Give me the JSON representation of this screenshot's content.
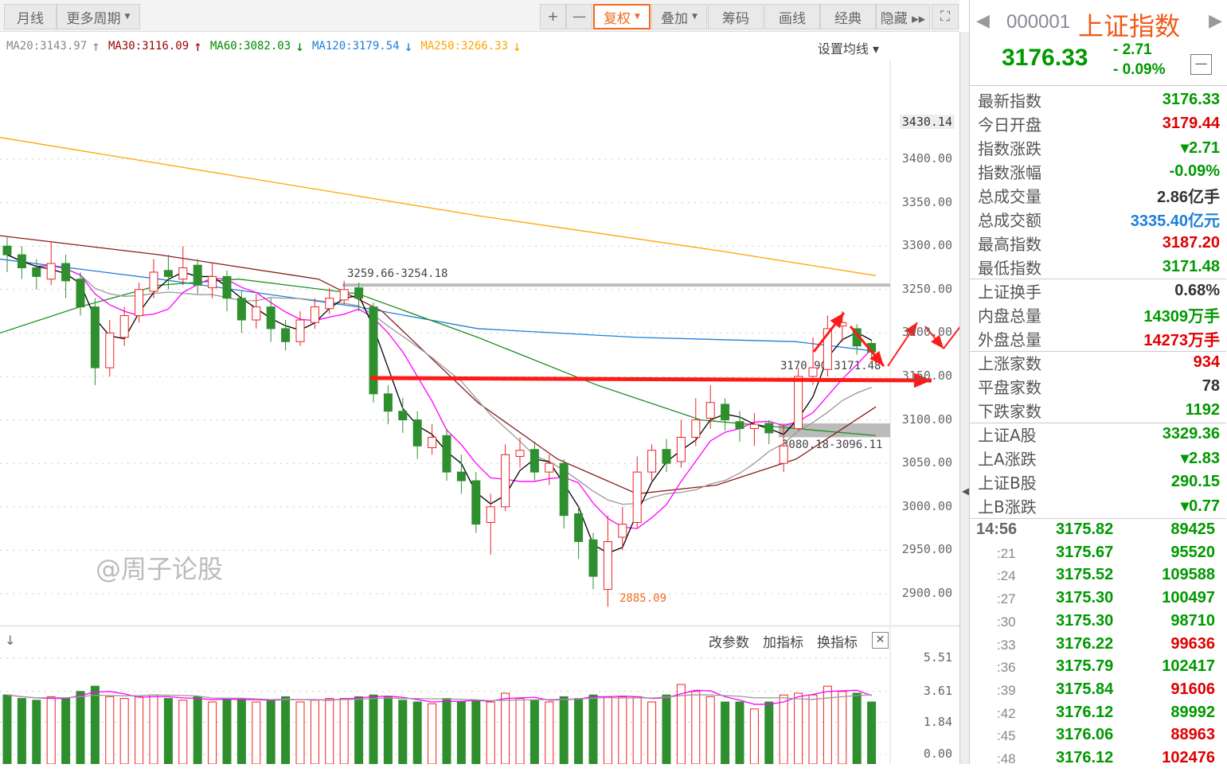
{
  "toolbar": {
    "left": [
      {
        "label": "月线"
      },
      {
        "label": "更多周期",
        "caret": true
      }
    ],
    "right": [
      {
        "label": "+"
      },
      {
        "label": "—"
      },
      {
        "label": "复权",
        "caret": true,
        "active": true
      },
      {
        "label": "叠加",
        "caret": true
      },
      {
        "label": "筹码"
      },
      {
        "label": "画线"
      },
      {
        "label": "经典"
      },
      {
        "label": "隐藏 ▸▸"
      },
      {
        "label": "⛶"
      }
    ]
  },
  "ma_legend": [
    {
      "label": "MA20:3143.97",
      "arrow": "↑",
      "color": "#888888"
    },
    {
      "label": "MA30:3116.09",
      "arrow": "↑",
      "color": "#990000"
    },
    {
      "label": "MA60:3082.03",
      "arrow": "↓",
      "color": "#008800"
    },
    {
      "label": "MA120:3179.54",
      "arrow": "↓",
      "color": "#1e7fd8"
    },
    {
      "label": "MA250:3266.33",
      "arrow": "↓",
      "color": "#ffa500"
    }
  ],
  "ma_settings": "设置均线 ▾",
  "price_axis": [
    "3400.00",
    "3350.00",
    "3300.00",
    "3250.00",
    "3200.00",
    "3150.00",
    "3100.00",
    "3050.00",
    "3000.00",
    "2950.00",
    "2900.00"
  ],
  "price_axis_values": [
    3400,
    3350,
    3300,
    3250,
    3200,
    3150,
    3100,
    3050,
    3000,
    2950,
    2900
  ],
  "highlight_price": "3430.14",
  "annotations": {
    "gap_top": "3259.66-3254.18",
    "gap_mid": "3170.90-3171.48",
    "gap_low": "3080.18-3096.11",
    "low": "2885.09"
  },
  "colors": {
    "up": "#ee2222",
    "down": "#2f8f2f",
    "ma5": "#000000",
    "ma10": "#ff00ff",
    "ma20": "#999999",
    "ma30": "#8b1a1a",
    "ma60": "#1f8f1f",
    "ma120": "#1e7fd8",
    "ma250": "#ffa500",
    "arrow": "#ff1a1a"
  },
  "candles": [
    [
      3300,
      3290,
      3310,
      3270
    ],
    [
      3290,
      3275,
      3300,
      3262
    ],
    [
      3275,
      3265,
      3285,
      3250
    ],
    [
      3262,
      3280,
      3305,
      3255
    ],
    [
      3280,
      3260,
      3290,
      3240
    ],
    [
      3262,
      3230,
      3270,
      3220
    ],
    [
      3230,
      3160,
      3240,
      3140
    ],
    [
      3160,
      3200,
      3215,
      3150
    ],
    [
      3195,
      3220,
      3230,
      3185
    ],
    [
      3220,
      3250,
      3258,
      3212
    ],
    [
      3248,
      3270,
      3285,
      3240
    ],
    [
      3272,
      3265,
      3290,
      3250
    ],
    [
      3262,
      3275,
      3300,
      3255
    ],
    [
      3278,
      3255,
      3285,
      3245
    ],
    [
      3252,
      3265,
      3280,
      3240
    ],
    [
      3265,
      3240,
      3272,
      3225
    ],
    [
      3240,
      3215,
      3248,
      3200
    ],
    [
      3215,
      3230,
      3245,
      3205
    ],
    [
      3230,
      3205,
      3240,
      3190
    ],
    [
      3205,
      3190,
      3215,
      3180
    ],
    [
      3190,
      3215,
      3225,
      3185
    ],
    [
      3212,
      3230,
      3240,
      3205
    ],
    [
      3228,
      3240,
      3252,
      3222
    ],
    [
      3238,
      3250,
      3260,
      3232
    ],
    [
      3252,
      3240,
      3258,
      3225
    ],
    [
      3230,
      3130,
      3235,
      3120
    ],
    [
      3130,
      3110,
      3140,
      3095
    ],
    [
      3110,
      3100,
      3125,
      3085
    ],
    [
      3100,
      3070,
      3110,
      3055
    ],
    [
      3068,
      3080,
      3095,
      3060
    ],
    [
      3082,
      3040,
      3090,
      3030
    ],
    [
      3040,
      3030,
      3060,
      3015
    ],
    [
      3030,
      2980,
      3040,
      2970
    ],
    [
      2982,
      3000,
      3015,
      2945
    ],
    [
      3000,
      3060,
      3072,
      2995
    ],
    [
      3058,
      3065,
      3080,
      3045
    ],
    [
      3066,
      3040,
      3075,
      3030
    ],
    [
      3040,
      3050,
      3060,
      3025
    ],
    [
      3050,
      2990,
      3055,
      2975
    ],
    [
      2992,
      2960,
      3000,
      2940
    ],
    [
      2962,
      2920,
      2970,
      2905
    ],
    [
      2905,
      2960,
      2990,
      2885
    ],
    [
      2965,
      2980,
      3000,
      2950
    ],
    [
      2982,
      3040,
      3058,
      2975
    ],
    [
      3040,
      3065,
      3072,
      3030
    ],
    [
      3066,
      3050,
      3078,
      3040
    ],
    [
      3052,
      3080,
      3100,
      3045
    ],
    [
      3080,
      3100,
      3125,
      3070
    ],
    [
      3102,
      3120,
      3140,
      3090
    ],
    [
      3118,
      3100,
      3125,
      3088
    ],
    [
      3098,
      3090,
      3110,
      3075
    ],
    [
      3090,
      3095,
      3108,
      3070
    ],
    [
      3096,
      3085,
      3100,
      3072
    ],
    [
      3050,
      3070,
      3095,
      3040
    ],
    [
      3090,
      3150,
      3160,
      3088
    ],
    [
      3150,
      3160,
      3195,
      3140
    ],
    [
      3158,
      3205,
      3220,
      3150
    ],
    [
      3208,
      3212,
      3225,
      3190
    ],
    [
      3205,
      3185,
      3210,
      3175
    ],
    [
      3188,
      3178,
      3192,
      3170
    ]
  ],
  "ma_long": {
    "ma30": [
      [
        0,
        3312
      ],
      [
        200,
        3290
      ],
      [
        400,
        3262
      ],
      [
        480,
        3225
      ],
      [
        600,
        3120
      ],
      [
        700,
        3055
      ],
      [
        800,
        3015
      ],
      [
        900,
        3025
      ],
      [
        1000,
        3055
      ],
      [
        1100,
        3115
      ]
    ],
    "ma60": [
      [
        0,
        3200
      ],
      [
        100,
        3230
      ],
      [
        200,
        3255
      ],
      [
        300,
        3262
      ],
      [
        450,
        3245
      ],
      [
        600,
        3195
      ],
      [
        750,
        3140
      ],
      [
        880,
        3100
      ],
      [
        1000,
        3090
      ],
      [
        1100,
        3082
      ]
    ],
    "ma120": [
      [
        0,
        3285
      ],
      [
        200,
        3262
      ],
      [
        450,
        3230
      ],
      [
        600,
        3205
      ],
      [
        800,
        3195
      ],
      [
        1000,
        3190
      ],
      [
        1100,
        3179
      ]
    ],
    "ma250": [
      [
        0,
        3425
      ],
      [
        300,
        3380
      ],
      [
        600,
        3335
      ],
      [
        900,
        3295
      ],
      [
        1100,
        3266
      ]
    ]
  },
  "volume": {
    "axis": [
      "5.51",
      "3.61",
      "1.84",
      "0.00"
    ],
    "axis_values": [
      5.51,
      3.61,
      1.84,
      0
    ],
    "values": [
      3.4,
      3.2,
      3.1,
      3.3,
      3.2,
      3.6,
      3.9,
      3.3,
      3.2,
      3.3,
      3.4,
      3.2,
      3.1,
      3.3,
      3.0,
      3.2,
      3.2,
      3.0,
      3.1,
      3.3,
      3.0,
      3.1,
      3.2,
      3.2,
      3.3,
      3.4,
      3.3,
      3.1,
      3.0,
      2.9,
      3.2,
      3.0,
      3.1,
      3.0,
      3.5,
      3.2,
      3.1,
      3.0,
      3.3,
      3.2,
      3.4,
      3.3,
      3.3,
      3.3,
      3.0,
      3.4,
      4.0,
      3.6,
      3.3,
      3.0,
      3.0,
      2.6,
      3.0,
      3.4,
      3.5,
      3.4,
      3.9,
      3.6,
      3.5,
      3.0
    ],
    "tools": [
      "改参数",
      "加指标",
      "换指标"
    ],
    "close": "✕"
  },
  "quote": {
    "code": "000001",
    "name": "上证指数",
    "price": "3176.33",
    "change": "- 2.71",
    "pct": "- 0.09%",
    "rows": [
      {
        "label": "最新指数",
        "value": "3176.33",
        "color": "#009900"
      },
      {
        "label": "今日开盘",
        "value": "3179.44",
        "color": "#e00000"
      },
      {
        "label": "指数涨跌",
        "value": "▾2.71",
        "color": "#009900"
      },
      {
        "label": "指数涨幅",
        "value": "-0.09%",
        "color": "#009900"
      },
      {
        "label": "总成交量",
        "value": "2.86亿手",
        "color": "#333333"
      },
      {
        "label": "总成交额",
        "value": "3335.40亿元",
        "color": "#1e7fd8"
      },
      {
        "label": "最高指数",
        "value": "3187.20",
        "color": "#e00000"
      },
      {
        "label": "最低指数",
        "value": "3171.48",
        "color": "#009900"
      },
      {
        "label": "上证换手",
        "value": "0.68%",
        "color": "#333333"
      },
      {
        "label": "内盘总量",
        "value": "14309万手",
        "color": "#009900"
      },
      {
        "label": "外盘总量",
        "value": "14273万手",
        "color": "#e00000"
      },
      {
        "label": "上涨家数",
        "value": "934",
        "color": "#e00000"
      },
      {
        "label": "平盘家数",
        "value": "78",
        "color": "#333333"
      },
      {
        "label": "下跌家数",
        "value": "1192",
        "color": "#009900"
      },
      {
        "label": "上证A股",
        "value": "3329.36",
        "color": "#009900"
      },
      {
        "label": "上A涨跌",
        "value": "▾2.83",
        "color": "#009900"
      },
      {
        "label": "上证B股",
        "value": "290.15",
        "color": "#009900"
      },
      {
        "label": "上B涨跌",
        "value": "▾0.77",
        "color": "#009900"
      }
    ],
    "ticks": [
      {
        "t": "14:56",
        "p": "3175.82",
        "v": "89425",
        "vc": "#009900"
      },
      {
        "t": ":21",
        "p": "3175.67",
        "v": "95520",
        "vc": "#009900"
      },
      {
        "t": ":24",
        "p": "3175.52",
        "v": "109588",
        "vc": "#009900"
      },
      {
        "t": ":27",
        "p": "3175.30",
        "v": "100497",
        "vc": "#009900"
      },
      {
        "t": ":30",
        "p": "3175.30",
        "v": "98710",
        "vc": "#009900"
      },
      {
        "t": ":33",
        "p": "3176.22",
        "v": "99636",
        "vc": "#e00000"
      },
      {
        "t": ":36",
        "p": "3175.79",
        "v": "102417",
        "vc": "#009900"
      },
      {
        "t": ":39",
        "p": "3175.84",
        "v": "91606",
        "vc": "#e00000"
      },
      {
        "t": ":42",
        "p": "3176.12",
        "v": "89992",
        "vc": "#009900"
      },
      {
        "t": ":45",
        "p": "3176.06",
        "v": "88963",
        "vc": "#e00000"
      },
      {
        "t": ":48",
        "p": "3176.12",
        "v": "102476",
        "vc": "#e00000"
      }
    ]
  },
  "watermark": "@周子论股"
}
